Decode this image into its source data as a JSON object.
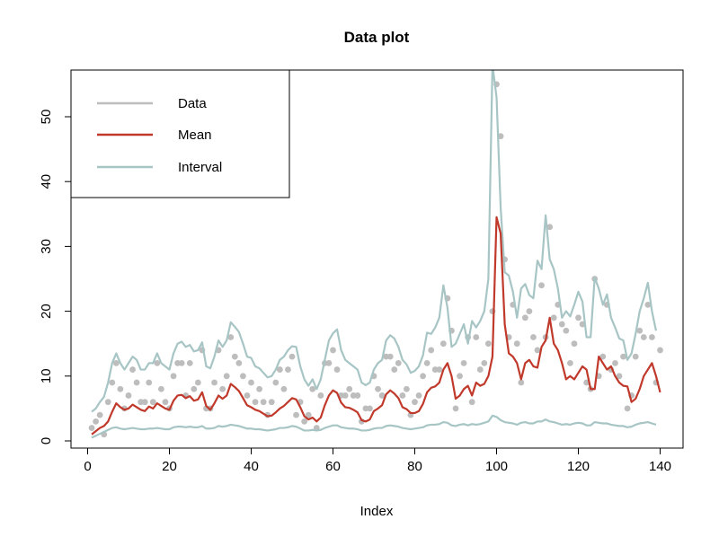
{
  "chart_data": {
    "type": "line",
    "title": "Data plot",
    "xlabel": "Index",
    "ylabel": "",
    "xlim": [
      1,
      140
    ],
    "ylim": [
      0,
      57
    ],
    "xticks": [
      0,
      20,
      40,
      60,
      80,
      100,
      120,
      140
    ],
    "yticks": [
      0,
      10,
      20,
      30,
      40,
      50
    ],
    "grid": false,
    "legend_position": "top-left",
    "colors": {
      "data": "#bdbdbd",
      "mean": "#c0392b",
      "interval": "#a8c5c5"
    },
    "legend": [
      "Data",
      "Mean",
      "Interval"
    ],
    "x": [
      1,
      2,
      3,
      4,
      5,
      6,
      7,
      8,
      9,
      10,
      11,
      12,
      13,
      14,
      15,
      16,
      17,
      18,
      19,
      20,
      21,
      22,
      23,
      24,
      25,
      26,
      27,
      28,
      29,
      30,
      31,
      32,
      33,
      34,
      35,
      36,
      37,
      38,
      39,
      40,
      41,
      42,
      43,
      44,
      45,
      46,
      47,
      48,
      49,
      50,
      51,
      52,
      53,
      54,
      55,
      56,
      57,
      58,
      59,
      60,
      61,
      62,
      63,
      64,
      65,
      66,
      67,
      68,
      69,
      70,
      71,
      72,
      73,
      74,
      75,
      76,
      77,
      78,
      79,
      80,
      81,
      82,
      83,
      84,
      85,
      86,
      87,
      88,
      89,
      90,
      91,
      92,
      93,
      94,
      95,
      96,
      97,
      98,
      99,
      100,
      101,
      102,
      103,
      104,
      105,
      106,
      107,
      108,
      109,
      110,
      111,
      112,
      113,
      114,
      115,
      116,
      117,
      118,
      119,
      120,
      121,
      122,
      123,
      124,
      125,
      126,
      127,
      128,
      129,
      130,
      131,
      132,
      133,
      134,
      135,
      136,
      137,
      138,
      139,
      140
    ],
    "series": [
      {
        "name": "Data",
        "values": [
          2,
          3,
          4,
          1,
          6,
          9,
          12,
          8,
          5,
          7,
          11,
          9,
          6,
          6,
          9,
          6,
          12,
          8,
          6,
          5,
          10,
          12,
          12,
          7,
          12,
          8,
          9,
          14,
          5,
          5,
          9,
          14,
          8,
          10,
          16,
          13,
          12,
          10,
          7,
          9,
          6,
          8,
          6,
          4,
          6,
          9,
          11,
          8,
          11,
          13,
          4,
          6,
          3,
          4,
          8,
          2,
          7,
          12,
          12,
          14,
          11,
          7,
          7,
          8,
          7,
          7,
          3,
          5,
          5,
          10,
          8,
          7,
          13,
          13,
          11,
          12,
          7,
          8,
          4,
          6,
          7,
          10,
          12,
          14,
          11,
          11,
          15,
          22,
          17,
          5,
          10,
          12,
          16,
          6,
          16,
          11,
          12,
          15,
          20,
          55,
          47,
          28,
          16,
          21,
          15,
          9,
          19,
          20,
          16,
          14,
          24,
          16,
          33,
          19,
          21,
          18,
          17,
          12,
          15,
          19,
          18,
          9,
          8,
          25,
          10,
          13,
          21,
          11,
          12,
          10,
          13,
          5,
          7,
          13,
          17,
          16,
          21,
          16,
          9,
          14
        ],
        "style": "points"
      },
      {
        "name": "Mean",
        "values": [
          1.0,
          1.5,
          2.0,
          2.3,
          3.0,
          4.5,
          5.8,
          5.2,
          4.8,
          5.0,
          5.6,
          5.2,
          4.8,
          4.6,
          5.3,
          5.0,
          5.8,
          5.4,
          5.0,
          4.8,
          6.2,
          7.0,
          7.1,
          6.6,
          6.9,
          6.2,
          6.4,
          7.5,
          5.4,
          4.8,
          5.8,
          7.0,
          6.5,
          7.0,
          8.8,
          8.3,
          7.7,
          6.6,
          5.5,
          5.2,
          4.8,
          4.6,
          4.2,
          3.8,
          3.9,
          4.4,
          5.0,
          5.4,
          6.0,
          6.6,
          6.4,
          5.2,
          3.8,
          3.3,
          3.6,
          3.0,
          3.6,
          5.5,
          7.0,
          7.8,
          7.4,
          5.9,
          5.2,
          5.1,
          4.8,
          4.4,
          3.2,
          3.0,
          3.3,
          4.6,
          5.0,
          5.5,
          7.2,
          7.8,
          7.3,
          6.6,
          5.2,
          4.9,
          4.3,
          4.3,
          4.6,
          5.7,
          7.5,
          8.2,
          8.4,
          9.0,
          11.0,
          12.0,
          10.0,
          6.5,
          7.0,
          8.0,
          8.5,
          7.0,
          9.0,
          8.5,
          8.8,
          10.0,
          13.0,
          34.5,
          32.0,
          18.0,
          13.5,
          13.0,
          12.0,
          9.5,
          12.0,
          12.5,
          11.5,
          11.3,
          14.5,
          15.5,
          19.0,
          15.0,
          14.0,
          12.0,
          9.5,
          10.0,
          9.5,
          10.5,
          11.5,
          11.0,
          8.0,
          8.0,
          13.0,
          12.0,
          11.0,
          11.5,
          10.0,
          9.0,
          8.5,
          8.4,
          6.0,
          6.5,
          8.0,
          10.0,
          11.0,
          12.0,
          10.0,
          7.5
        ],
        "style": "line"
      },
      {
        "name": "Interval",
        "upper": [
          4.5,
          5.0,
          6.0,
          6.8,
          9.0,
          12.0,
          13.5,
          12.0,
          11.0,
          12.0,
          13.0,
          12.5,
          11.0,
          11.0,
          12.0,
          12.0,
          13.5,
          12.0,
          11.5,
          11.0,
          13.5,
          15.0,
          15.3,
          14.5,
          14.8,
          13.8,
          14.0,
          15.2,
          11.5,
          11.2,
          13.0,
          15.5,
          14.5,
          15.5,
          18.3,
          17.6,
          16.8,
          15.0,
          13.0,
          12.8,
          11.5,
          11.2,
          10.5,
          9.8,
          10.0,
          11.0,
          12.5,
          13.0,
          14.0,
          14.6,
          14.5,
          11.5,
          9.5,
          8.5,
          9.5,
          8.0,
          9.5,
          12.5,
          15.5,
          16.6,
          17.2,
          14.0,
          12.5,
          12.0,
          11.5,
          11.0,
          9.0,
          8.6,
          9.0,
          11.0,
          12.0,
          12.5,
          15.5,
          16.3,
          15.8,
          14.5,
          12.5,
          11.8,
          10.5,
          10.8,
          11.5,
          13.2,
          16.7,
          16.5,
          17.5,
          19.0,
          24.0,
          20.5,
          14.5,
          15.0,
          16.5,
          18.0,
          15.0,
          18.5,
          17.5,
          18.5,
          20.0,
          25.0,
          58.0,
          53.0,
          36.0,
          26.0,
          25.5,
          23.0,
          19.0,
          23.5,
          24.2,
          22.5,
          22.0,
          27.8,
          26.5,
          34.8,
          28.0,
          26.5,
          23.5,
          19.0,
          20.0,
          19.2,
          21.0,
          23.0,
          21.5,
          16.0,
          16.0,
          25.2,
          23.5,
          21.0,
          22.6,
          19.0,
          17.5,
          15.8,
          15.5,
          12.5,
          13.5,
          16.5,
          20.0,
          22.0,
          24.4,
          20.0,
          17.0
        ],
        "lower": [
          0.5,
          0.8,
          1.1,
          1.4,
          1.7,
          2.0,
          2.1,
          1.9,
          1.8,
          1.9,
          2.0,
          1.9,
          1.8,
          1.8,
          1.9,
          1.9,
          2.0,
          1.9,
          1.8,
          1.8,
          2.1,
          2.2,
          2.2,
          2.1,
          2.2,
          2.1,
          2.1,
          2.3,
          1.9,
          1.9,
          2.0,
          2.3,
          2.2,
          2.3,
          2.5,
          2.4,
          2.3,
          2.1,
          1.9,
          1.9,
          1.8,
          1.8,
          1.7,
          1.6,
          1.7,
          1.8,
          2.0,
          2.0,
          2.1,
          2.3,
          2.2,
          1.9,
          1.6,
          1.6,
          1.7,
          1.6,
          1.7,
          2.0,
          2.2,
          2.4,
          2.4,
          2.1,
          2.0,
          1.9,
          1.9,
          1.8,
          1.6,
          1.6,
          1.7,
          1.9,
          2.0,
          2.0,
          2.3,
          2.4,
          2.3,
          2.2,
          2.0,
          1.9,
          1.8,
          1.9,
          2.0,
          2.1,
          2.4,
          2.5,
          2.5,
          2.6,
          2.9,
          2.8,
          2.4,
          2.3,
          2.5,
          2.6,
          2.4,
          2.6,
          2.5,
          2.6,
          2.8,
          3.0,
          3.9,
          3.7,
          3.2,
          2.9,
          2.8,
          2.7,
          2.5,
          2.8,
          2.9,
          2.7,
          2.7,
          3.0,
          3.0,
          3.3,
          3.0,
          2.9,
          2.7,
          2.5,
          2.6,
          2.5,
          2.7,
          2.8,
          2.7,
          2.4,
          2.4,
          2.9,
          2.8,
          2.7,
          2.7,
          2.5,
          2.4,
          2.3,
          2.3,
          2.1,
          2.2,
          2.5,
          2.7,
          2.8,
          2.9,
          2.7,
          2.5
        ],
        "style": "band-lines"
      }
    ]
  }
}
